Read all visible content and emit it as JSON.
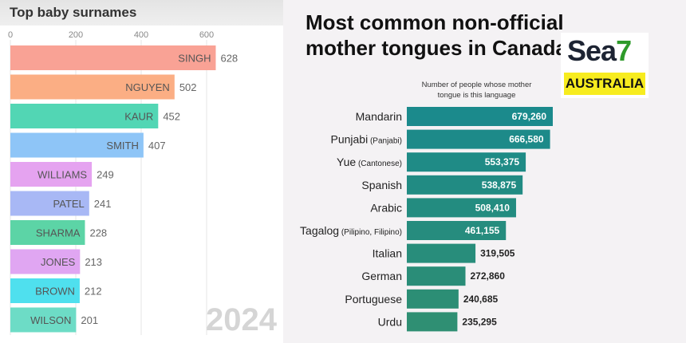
{
  "chart_data": [
    {
      "type": "bar",
      "orientation": "horizontal",
      "title": "Top baby surnames",
      "categories": [
        "SINGH",
        "NGUYEN",
        "KAUR",
        "SMITH",
        "WILLIAMS",
        "PATEL",
        "SHARMA",
        "JONES",
        "BROWN",
        "WILSON"
      ],
      "values": [
        628,
        502,
        452,
        407,
        249,
        241,
        228,
        213,
        212,
        201
      ],
      "colors": [
        "#f9a295",
        "#fbae84",
        "#52d6b4",
        "#8ec5f7",
        "#e5a3f0",
        "#a8b8f5",
        "#5cd4a6",
        "#e0a6f2",
        "#4fe0ee",
        "#6ddcc6"
      ],
      "xticks": [
        0,
        200,
        400,
        600
      ],
      "xlim": [
        0,
        700
      ],
      "annotation": "2024",
      "grid": true
    },
    {
      "type": "bar",
      "orientation": "horizontal",
      "title": "Most common non-official mother tongues in Canada",
      "subtitle": "Number of people whose mother tongue is this language",
      "categories": [
        {
          "label": "Mandarin",
          "note": ""
        },
        {
          "label": "Punjabi",
          "note": "(Panjabi)"
        },
        {
          "label": "Yue",
          "note": "(Cantonese)"
        },
        {
          "label": "Spanish",
          "note": ""
        },
        {
          "label": "Arabic",
          "note": ""
        },
        {
          "label": "Tagalog",
          "note": "(Pilipino, Filipino)"
        },
        {
          "label": "Italian",
          "note": ""
        },
        {
          "label": "German",
          "note": ""
        },
        {
          "label": "Portuguese",
          "note": ""
        },
        {
          "label": "Urdu",
          "note": ""
        }
      ],
      "values": [
        679260,
        666580,
        553375,
        538875,
        508410,
        461155,
        319505,
        272860,
        240685,
        235295
      ],
      "value_labels": [
        "679,260",
        "666,580",
        "553,375",
        "538,875",
        "508,410",
        "461,155",
        "319,505",
        "272,860",
        "240,685",
        "235,295"
      ],
      "color": "#1b8a8c",
      "xlim": [
        0,
        680000
      ],
      "grid": false
    }
  ],
  "logo": {
    "brand": "Sea",
    "brand_num": "7",
    "tagline": "AUSTRALIA"
  }
}
